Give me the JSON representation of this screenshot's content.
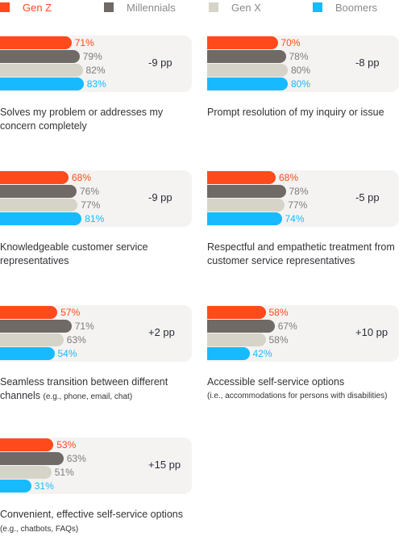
{
  "colors": {
    "gen_z": "#ff4a1c",
    "millennials": "#6f6a66",
    "gen_x": "#d6d3c9",
    "boomers": "#17baff",
    "panel_bg": "#f4f3f1",
    "value_dark": "#7c7c7c"
  },
  "legend": [
    {
      "label": "Gen Z",
      "color": "#ff4a1c",
      "text_color": "#ff4a1c"
    },
    {
      "label": "Millennials",
      "color": "#6f6a66",
      "text_color": "#8a8a8a"
    },
    {
      "label": "Gen X",
      "color": "#d6d3c9",
      "text_color": "#8a8a8a"
    },
    {
      "label": "Boomers",
      "color": "#17baff",
      "text_color": "#8a8a8a"
    }
  ],
  "chart_data": {
    "type": "bar",
    "orientation": "horizontal",
    "unit": "%",
    "series_names": [
      "Gen Z",
      "Millennials",
      "Gen X",
      "Boomers"
    ],
    "panels": [
      {
        "label": "Solves my problem or addresses my concern completely",
        "note": "",
        "values": [
          71,
          79,
          82,
          83
        ],
        "difference": "-9 pp"
      },
      {
        "label": "Prompt resolution of my inquiry or issue",
        "note": "",
        "values": [
          70,
          78,
          80,
          80
        ],
        "difference": "-8 pp"
      },
      {
        "label": "Knowledgeable customer service representatives",
        "note": "",
        "values": [
          68,
          76,
          77,
          81
        ],
        "difference": "-9 pp"
      },
      {
        "label": "Respectful and empathetic treatment from customer service representatives",
        "note": "",
        "values": [
          68,
          78,
          77,
          74
        ],
        "difference": "-5 pp"
      },
      {
        "label": "Seamless transition between different channels",
        "note": "(e.g., phone, email, chat)",
        "values": [
          57,
          71,
          63,
          54
        ],
        "difference": "+2 pp"
      },
      {
        "label": "Accessible self-service options",
        "note": "(i.e., accommodations for persons with disabilities)",
        "values": [
          58,
          67,
          58,
          42
        ],
        "difference": "+10 pp"
      },
      {
        "label": "Convenient, effective self-service options",
        "note": "(e.g., chatbots, FAQs)",
        "values": [
          53,
          63,
          51,
          31
        ],
        "difference": "+15 pp"
      }
    ]
  }
}
